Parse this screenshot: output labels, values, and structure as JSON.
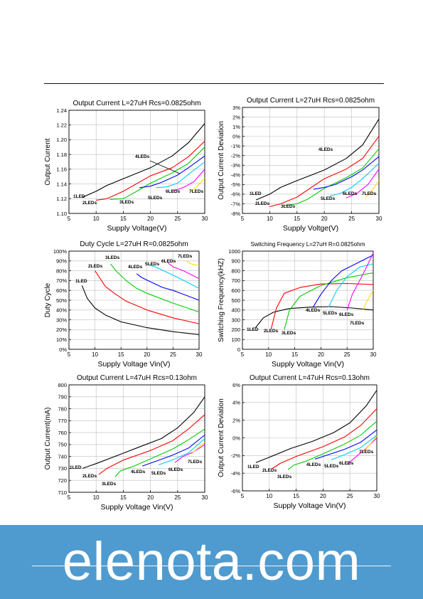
{
  "colors": {
    "banner": "#4f9bd0",
    "banner_text": "#ffffff",
    "axis": "#000000",
    "grid": "#bdbdbd",
    "series": [
      "#000000",
      "#ff0000",
      "#00cc00",
      "#0000ff",
      "#00ccff",
      "#ff00ff",
      "#ffdd00"
    ]
  },
  "watermark": {
    "text": "elenota.com"
  },
  "chart_data": [
    {
      "type": "line",
      "title": "Output Current L=27uH Rcs=0.0825ohm",
      "xlabel": "Supply Voltage(V)",
      "ylabel": "Output Current",
      "xlim": [
        5,
        30
      ],
      "ylim": [
        1.1,
        1.24
      ],
      "xticks": [
        5,
        10,
        15,
        20,
        25,
        30
      ],
      "xtick_labels": [
        "5",
        "10",
        "15",
        "20",
        "25",
        "30"
      ],
      "yticks": [
        1.1,
        1.12,
        1.14,
        1.16,
        1.18,
        1.2,
        1.22,
        1.24
      ],
      "ytick_labels": [
        "1.10",
        "1.12",
        "1.14",
        "1.16",
        "1.18",
        "1.20",
        "1.22",
        "1.24"
      ],
      "grid": true,
      "series": [
        {
          "name": "1LED",
          "x": [
            7.5,
            10,
            12,
            15,
            20,
            24,
            27,
            30
          ],
          "y": [
            1.122,
            1.13,
            1.138,
            1.147,
            1.162,
            1.178,
            1.196,
            1.222
          ]
        },
        {
          "name": "2LEDs",
          "x": [
            10,
            12,
            15,
            20,
            24,
            27,
            30
          ],
          "y": [
            1.118,
            1.12,
            1.13,
            1.151,
            1.162,
            1.177,
            1.198
          ]
        },
        {
          "name": "3LEDs",
          "x": [
            12.5,
            15,
            17,
            20,
            24,
            27,
            30
          ],
          "y": [
            1.119,
            1.12,
            1.128,
            1.141,
            1.155,
            1.168,
            1.19
          ]
        },
        {
          "name": "4LEDs",
          "x": [
            18,
            20,
            22,
            25,
            27,
            30
          ],
          "y": [
            1.135,
            1.137,
            1.142,
            1.152,
            1.162,
            1.178
          ]
        },
        {
          "name": "5LEDs",
          "x": [
            21,
            23,
            25,
            27,
            30
          ],
          "y": [
            1.135,
            1.136,
            1.141,
            1.153,
            1.17
          ]
        },
        {
          "name": "6LEDs",
          "x": [
            24,
            26,
            28,
            30
          ],
          "y": [
            1.13,
            1.135,
            1.143,
            1.16
          ]
        },
        {
          "name": "7LEDs",
          "x": [
            27.5,
            28.5,
            30
          ],
          "y": [
            1.13,
            1.136,
            1.148
          ]
        }
      ],
      "annotations": [
        "1LED",
        "2LEDs",
        "3LEDs",
        "4LEDs",
        "5LEDs",
        "6LEDs",
        "7LEDs"
      ]
    },
    {
      "type": "line",
      "title": "Output Current L=27uH Rcs=0.0825ohm",
      "xlabel": "Supply Voltge(V)",
      "ylabel": "Output Current Deviation",
      "xlim": [
        5,
        30
      ],
      "ylim": [
        -8,
        3
      ],
      "xticks": [
        5,
        10,
        15,
        20,
        25,
        30
      ],
      "xtick_labels": [
        "5",
        "10",
        "15",
        "20",
        "25",
        "30"
      ],
      "yticks": [
        -8,
        -7,
        -6,
        -5,
        -4,
        -3,
        -2,
        -1,
        0,
        1,
        2,
        3
      ],
      "ytick_labels": [
        "-8%",
        "-7%",
        "-6%",
        "-5%",
        "-4%",
        "-3%",
        "-2%",
        "-1%",
        "0%",
        "1%",
        "2%",
        "3%"
      ],
      "grid": true,
      "series": [
        {
          "name": "1LED",
          "x": [
            7.5,
            10,
            12,
            15,
            20,
            24,
            27,
            30
          ],
          "y": [
            -6.6,
            -6.0,
            -5.3,
            -4.6,
            -3.5,
            -2.3,
            -0.9,
            1.8
          ]
        },
        {
          "name": "2LEDs",
          "x": [
            10,
            12,
            15,
            20,
            24,
            27,
            30
          ],
          "y": [
            -7.3,
            -7.0,
            -6.3,
            -4.4,
            -3.4,
            -2.3,
            0.0
          ]
        },
        {
          "name": "3LEDs",
          "x": [
            12.5,
            15,
            17,
            20,
            24,
            27,
            30
          ],
          "y": [
            -7.2,
            -7.0,
            -6.5,
            -5.4,
            -4.3,
            -3.3,
            -1.3
          ]
        },
        {
          "name": "4LEDs",
          "x": [
            18,
            20,
            22,
            25,
            27,
            30
          ],
          "y": [
            -5.5,
            -5.3,
            -5.0,
            -4.2,
            -3.5,
            -2.1
          ]
        },
        {
          "name": "5LEDs",
          "x": [
            21,
            23,
            25,
            27,
            30
          ],
          "y": [
            -6.2,
            -5.9,
            -5.3,
            -4.4,
            -2.8
          ]
        },
        {
          "name": "6LEDs",
          "x": [
            24,
            26,
            28,
            30
          ],
          "y": [
            -6.4,
            -5.9,
            -5.0,
            -3.4
          ]
        },
        {
          "name": "7LEDs",
          "x": [
            27.5,
            28.5,
            30
          ],
          "y": [
            -6.4,
            -5.8,
            -4.6
          ]
        }
      ],
      "annotations": [
        "1LED",
        "2LEDs",
        "3LEDs",
        "4LEDs",
        "5LEDs",
        "6LEDs",
        "7LEDs"
      ]
    },
    {
      "type": "line",
      "title": "Duty Cycle L=27uH R=0.0825ohm",
      "xlabel": "Supply Voltage Vin(V)",
      "ylabel": "Duty Cycle",
      "xlim": [
        5,
        30
      ],
      "ylim": [
        0,
        100
      ],
      "xticks": [
        5,
        10,
        15,
        20,
        25,
        30
      ],
      "xtick_labels": [
        "5",
        "10",
        "15",
        "20",
        "25",
        "30"
      ],
      "yticks": [
        0,
        10,
        20,
        30,
        40,
        50,
        60,
        70,
        80,
        90,
        100
      ],
      "ytick_labels": [
        "0%",
        "10%",
        "20%",
        "30%",
        "40%",
        "50%",
        "60%",
        "70%",
        "80%",
        "90%",
        "100%"
      ],
      "grid": true,
      "series": [
        {
          "name": "1LED",
          "x": [
            7.5,
            8.5,
            10,
            12,
            15,
            20,
            25,
            30
          ],
          "y": [
            65,
            52,
            42,
            35,
            28,
            22,
            18,
            15
          ]
        },
        {
          "name": "2LEDs",
          "x": [
            10,
            11,
            12,
            14,
            16,
            20,
            25,
            30
          ],
          "y": [
            80,
            72,
            64,
            56,
            49,
            40,
            32,
            26
          ]
        },
        {
          "name": "3LEDs",
          "x": [
            13,
            14,
            16,
            18,
            20,
            25,
            30
          ],
          "y": [
            87,
            80,
            70,
            62,
            57,
            47,
            38
          ]
        },
        {
          "name": "4LEDs",
          "x": [
            18,
            19,
            21,
            23,
            25,
            30
          ],
          "y": [
            77,
            73,
            68,
            63,
            60,
            50
          ]
        },
        {
          "name": "5LEDs",
          "x": [
            20.5,
            22,
            24,
            26,
            30
          ],
          "y": [
            86,
            83,
            78,
            73,
            62
          ]
        },
        {
          "name": "6LEDs",
          "x": [
            24,
            25,
            27,
            30
          ],
          "y": [
            88,
            84,
            80,
            72
          ]
        },
        {
          "name": "7LEDs",
          "x": [
            27.5,
            28.5,
            30
          ],
          "y": [
            90,
            87,
            85
          ]
        }
      ],
      "annotations": [
        "1LED",
        "2LEDs",
        "3LEDs",
        "4LEDs",
        "5LEDs",
        "6LEDs",
        "7LEDs"
      ]
    },
    {
      "type": "line",
      "title": "Switching Frequency L=27uH R=0.0825ohm",
      "xlabel": "Supply Voltage Vin(V)",
      "ylabel": "Switching Frequency(kHZ)",
      "xlim": [
        5,
        30
      ],
      "ylim": [
        0,
        1000
      ],
      "xticks": [
        5,
        10,
        15,
        20,
        25,
        30
      ],
      "xtick_labels": [
        "5",
        "10",
        "15",
        "20",
        "25",
        "30"
      ],
      "yticks": [
        0,
        100,
        200,
        300,
        400,
        500,
        600,
        700,
        800,
        900,
        1000
      ],
      "ytick_labels": [
        "0",
        "100",
        "200",
        "300",
        "400",
        "500",
        "600",
        "700",
        "800",
        "900",
        "1000"
      ],
      "grid": true,
      "series": [
        {
          "name": "1LED",
          "x": [
            7.5,
            9,
            11,
            14,
            18,
            22,
            26,
            30
          ],
          "y": [
            220,
            320,
            380,
            415,
            430,
            435,
            420,
            400
          ]
        },
        {
          "name": "2LEDs",
          "x": [
            10.5,
            11.5,
            13,
            16,
            20,
            25,
            30
          ],
          "y": [
            210,
            420,
            570,
            630,
            665,
            670,
            660
          ]
        },
        {
          "name": "3LEDs",
          "x": [
            13,
            14,
            16,
            20,
            25,
            30
          ],
          "y": [
            200,
            400,
            540,
            650,
            730,
            780
          ]
        },
        {
          "name": "4LEDs",
          "x": [
            18.5,
            20,
            22,
            24,
            27,
            30
          ],
          "y": [
            430,
            560,
            700,
            800,
            880,
            960
          ]
        },
        {
          "name": "5LEDs",
          "x": [
            21.5,
            23,
            25,
            27.5,
            30
          ],
          "y": [
            430,
            600,
            740,
            840,
            870
          ]
        },
        {
          "name": "6LEDs",
          "x": [
            25,
            26,
            28,
            30
          ],
          "y": [
            400,
            560,
            760,
            980
          ]
        },
        {
          "name": "7LEDs",
          "x": [
            28,
            29,
            30
          ],
          "y": [
            400,
            510,
            600
          ]
        }
      ],
      "annotations": [
        "1LED",
        "2LEDs",
        "3LEDs",
        "4LEDs",
        "5LEDs",
        "6LEDs",
        "7LEDs"
      ]
    },
    {
      "type": "line",
      "title": "Output Current L=47uH Rcs=0.13ohm",
      "xlabel": "Supply Voltage Vin(V)",
      "ylabel": "Output Current(mA)",
      "xlim": [
        5,
        30
      ],
      "ylim": [
        710,
        800
      ],
      "xticks": [
        5,
        10,
        15,
        20,
        25,
        30
      ],
      "xtick_labels": [
        "5",
        "10",
        "15",
        "20",
        "25",
        "30"
      ],
      "yticks": [
        710,
        720,
        730,
        740,
        750,
        760,
        770,
        780,
        790,
        800
      ],
      "ytick_labels": [
        "710",
        "720",
        "730",
        "740",
        "750",
        "760",
        "770",
        "780",
        "790",
        "800"
      ],
      "grid": true,
      "series": [
        {
          "name": "1LED",
          "x": [
            7.5,
            10,
            14,
            18,
            22,
            25,
            28,
            30
          ],
          "y": [
            730,
            734,
            741,
            748,
            755,
            764,
            777,
            790
          ]
        },
        {
          "name": "2LEDs",
          "x": [
            10.5,
            12,
            15,
            20,
            24,
            27,
            30
          ],
          "y": [
            725,
            730,
            737,
            745,
            753,
            763,
            775
          ]
        },
        {
          "name": "3LEDs",
          "x": [
            13.5,
            14.5,
            17,
            20,
            24,
            27,
            30
          ],
          "y": [
            723,
            728,
            732,
            738,
            746,
            754,
            763
          ]
        },
        {
          "name": "4LEDs",
          "x": [
            18.5,
            21,
            24,
            27,
            30
          ],
          "y": [
            732,
            736,
            741,
            747,
            758
          ]
        },
        {
          "name": "5LEDs",
          "x": [
            21.5,
            24,
            27,
            30
          ],
          "y": [
            733,
            737,
            743,
            755
          ]
        },
        {
          "name": "6LEDs",
          "x": [
            24.5,
            26,
            28,
            30
          ],
          "y": [
            735,
            740,
            744,
            750
          ]
        },
        {
          "name": "7LEDs",
          "x": [
            27.5,
            28.5,
            30
          ],
          "y": [
            742,
            746,
            752
          ]
        }
      ],
      "annotations": [
        "1LED",
        "2LEDs",
        "3LEDs",
        "4LEDs",
        "5LEDs",
        "6LEDs",
        "7LEDs"
      ]
    },
    {
      "type": "line",
      "title": "Output Current L=47uH Rcs=0.13ohm",
      "xlabel": "Supply Voltage Vin(V)",
      "ylabel": "Output Current Deviation",
      "xlim": [
        5,
        30
      ],
      "ylim": [
        -6,
        6
      ],
      "xticks": [
        5,
        10,
        15,
        20,
        25,
        30
      ],
      "xtick_labels": [
        "5",
        "10",
        "15",
        "20",
        "25",
        "30"
      ],
      "yticks": [
        -6,
        -4,
        -2,
        0,
        2,
        4,
        6
      ],
      "ytick_labels": [
        "-6%",
        "-4%",
        "-2%",
        "0%",
        "2%",
        "4%",
        "6%"
      ],
      "grid": true,
      "series": [
        {
          "name": "1LED",
          "x": [
            7.5,
            10,
            14,
            18,
            22,
            25,
            28,
            30
          ],
          "y": [
            -2.8,
            -2.2,
            -1.2,
            -0.4,
            0.6,
            1.7,
            3.6,
            5.4
          ]
        },
        {
          "name": "2LEDs",
          "x": [
            10.5,
            12,
            15,
            20,
            24,
            27,
            30
          ],
          "y": [
            -3.5,
            -2.9,
            -2.1,
            -1.0,
            0.1,
            1.4,
            3.3
          ]
        },
        {
          "name": "3LEDs",
          "x": [
            13.5,
            14.5,
            17,
            20,
            24,
            27,
            30
          ],
          "y": [
            -3.6,
            -3.1,
            -2.6,
            -1.8,
            -0.7,
            0.3,
            1.9
          ]
        },
        {
          "name": "4LEDs",
          "x": [
            18.5,
            21,
            24,
            27,
            30
          ],
          "y": [
            -2.4,
            -1.9,
            -1.3,
            -0.5,
            0.9
          ]
        },
        {
          "name": "5LEDs",
          "x": [
            21.5,
            24,
            27,
            30
          ],
          "y": [
            -2.5,
            -1.9,
            -1.1,
            0.3
          ]
        },
        {
          "name": "6LEDs",
          "x": [
            24.5,
            26,
            28,
            30
          ],
          "y": [
            -3.0,
            -2.2,
            -1.2,
            0.0
          ]
        },
        {
          "name": "7LEDs",
          "x": [
            27.5,
            28.5,
            30
          ],
          "y": [
            -1.6,
            -0.9,
            0.2
          ]
        }
      ],
      "annotations": [
        "1LED",
        "2LEDs",
        "3LEDs",
        "4LEDs",
        "5LEDs",
        "6LEDs",
        "7LEDs"
      ]
    }
  ]
}
